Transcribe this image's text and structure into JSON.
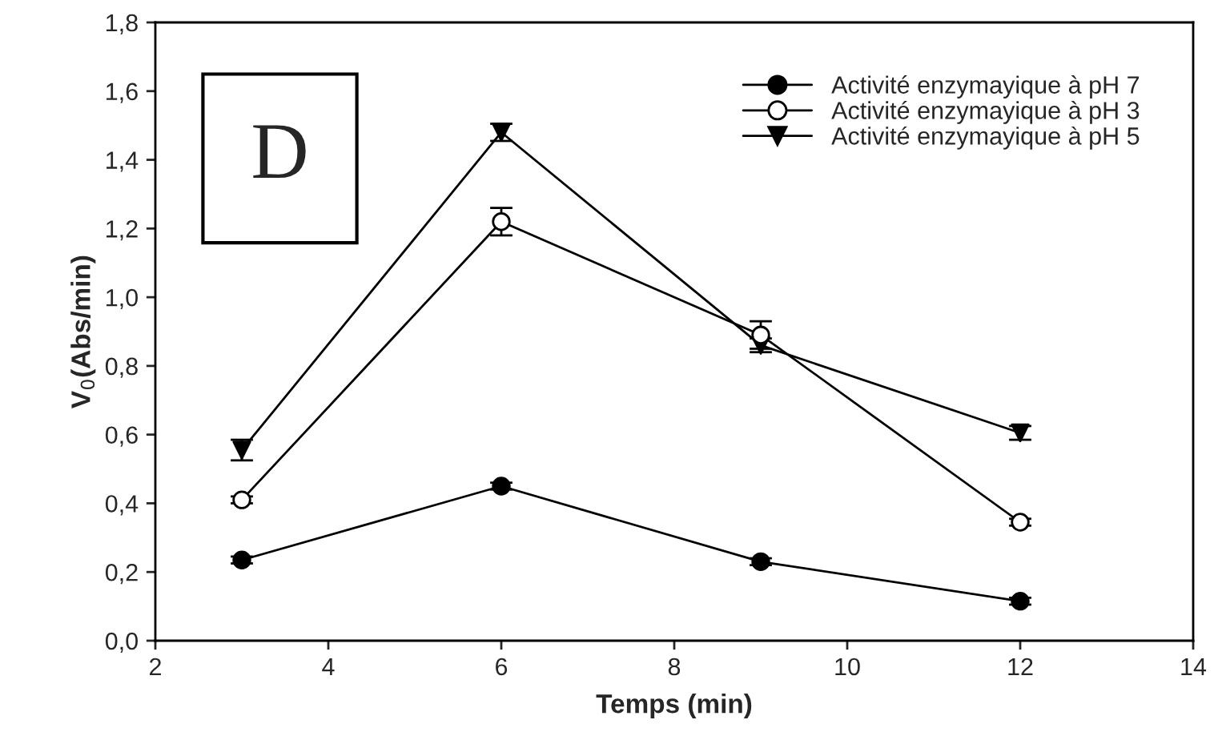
{
  "chart_data": {
    "type": "line",
    "xlabel": "Temps (min)",
    "ylabel": "V$_{0}$(Abs/min)",
    "x": [
      3,
      6,
      9,
      12
    ],
    "series": [
      {
        "name": "Activité enzymayique à pH 7",
        "color": "#000000",
        "marker": "circle",
        "values": [
          0.235,
          0.45,
          0.23,
          0.115
        ],
        "errors": [
          0.01,
          0.01,
          0.01,
          0.01
        ]
      },
      {
        "name": "Activité enzymayique à pH 3",
        "color": "#000000",
        "marker": "circle",
        "colors": [
          "#ffffff",
          "#ffffff",
          "#ffffff",
          "#ffffff"
        ],
        "values": [
          0.41,
          1.22,
          0.89,
          0.345
        ],
        "errors": [
          0.01,
          0.04,
          0.04,
          0.01
        ]
      },
      {
        "name": "Activité enzymayique à pH 5",
        "color": "#000000",
        "marker": "triangle",
        "values": [
          0.555,
          1.48,
          0.86,
          0.605
        ],
        "errors": [
          0.03,
          0.025,
          0.02,
          0.02
        ]
      }
    ],
    "xlim": [
      2,
      14
    ],
    "xticks": [
      2,
      4,
      6,
      8,
      10,
      12,
      14
    ],
    "ylim": [
      0,
      1.8
    ],
    "yticks": [
      {
        "value": 0,
        "label": "0,0"
      },
      {
        "value": 0.2,
        "label": "0,2"
      },
      {
        "value": 0.4,
        "label": "0,4"
      },
      {
        "value": 0.6,
        "label": "0,6"
      },
      {
        "value": 0.8,
        "label": "0,8"
      },
      {
        "value": 1.0,
        "label": "1,0"
      },
      {
        "value": 1.2,
        "label": "1,2"
      },
      {
        "value": 1.4,
        "label": "1,4"
      },
      {
        "value": 1.6,
        "label": "1,6"
      },
      {
        "value": 1.8,
        "label": "1,8"
      }
    ],
    "annotations": [
      "D"
    ],
    "grid": false,
    "legend": "top right",
    "line_style": "solid"
  }
}
